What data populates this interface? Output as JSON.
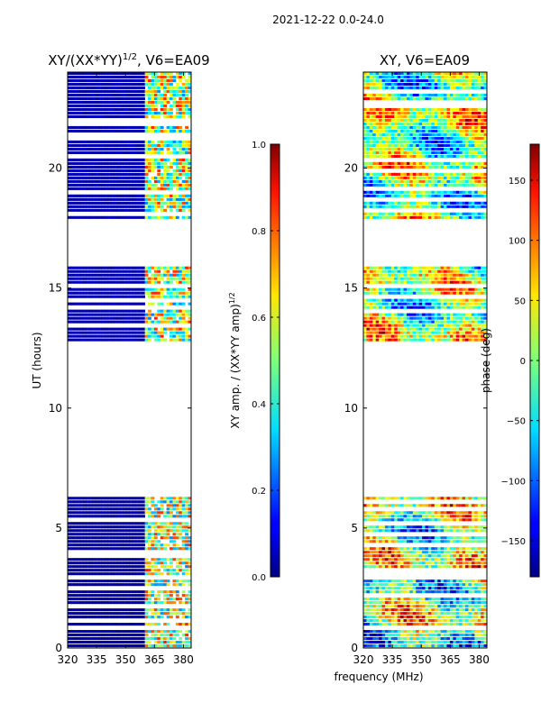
{
  "figure": {
    "suptitle": "2021-12-22 0.0-24.0",
    "shared_xlabel": "frequency (MHz)"
  },
  "chart_data": [
    {
      "type": "heatmap",
      "title_main": "XY/(XX*YY)",
      "title_exp": "1/2",
      "title_tail": ", V6=EA09",
      "xlabel": "",
      "ylabel": "UT (hours)",
      "xlim": [
        320,
        384
      ],
      "ylim": [
        0,
        24
      ],
      "xticks": [
        "320",
        "335",
        "350",
        "365",
        "380"
      ],
      "xtick_values": [
        320,
        335,
        350,
        365,
        380
      ],
      "yticks": [
        "0",
        "5",
        "10",
        "15",
        "20"
      ],
      "ytick_values": [
        0,
        5,
        10,
        15,
        20
      ],
      "data_ut_ranges": [
        [
          0.0,
          6.3
        ],
        [
          12.7,
          15.9
        ],
        [
          17.9,
          24.0
        ]
      ],
      "high_freq_band": [
        360,
        384
      ],
      "colorbar": {
        "label_main": "XY amp. / (XX*YY amp)",
        "label_exp": "1/2",
        "range": [
          0.0,
          1.0
        ],
        "ticks": [
          "0.0",
          "0.2",
          "0.4",
          "0.6",
          "0.8",
          "1.0"
        ],
        "tick_values": [
          0.0,
          0.2,
          0.4,
          0.6,
          0.8,
          1.0
        ],
        "colormap": "jet"
      }
    },
    {
      "type": "heatmap",
      "title": "XY, V6=EA09",
      "xlabel": "",
      "ylabel": "",
      "xlim": [
        320,
        384
      ],
      "ylim": [
        0,
        24
      ],
      "xticks": [
        "320",
        "335",
        "350",
        "365",
        "380"
      ],
      "xtick_values": [
        320,
        335,
        350,
        365,
        380
      ],
      "yticks": [
        "0",
        "5",
        "10",
        "15",
        "20"
      ],
      "ytick_values": [
        0,
        5,
        10,
        15,
        20
      ],
      "data_ut_ranges": [
        [
          0.0,
          6.3
        ],
        [
          12.7,
          15.9
        ],
        [
          17.9,
          24.0
        ]
      ],
      "colorbar": {
        "label": "phase (deg)",
        "range": [
          -180,
          180
        ],
        "ticks": [
          "−150",
          "−100",
          "−50",
          "0",
          "50",
          "100",
          "150"
        ],
        "tick_values": [
          -150,
          -100,
          -50,
          0,
          50,
          100,
          150
        ],
        "colormap": "jet"
      }
    }
  ]
}
